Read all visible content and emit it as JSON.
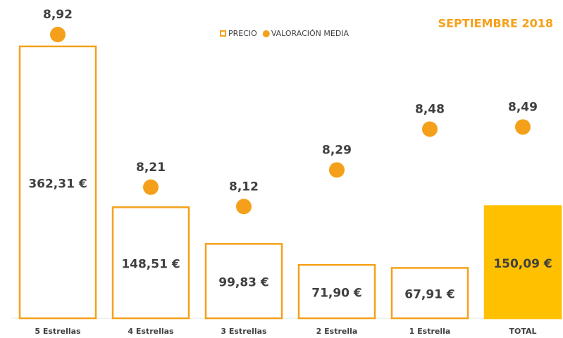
{
  "chart_data": {
    "type": "bar_dot",
    "title": "SEPTIEMBRE 2018",
    "categories": [
      "5 Estrellas",
      "4 Estrellas",
      "3 Estrellas",
      "2 Estrella",
      "1 Estrella",
      "TOTAL"
    ],
    "series": [
      {
        "name": "PRECIO",
        "type": "bar",
        "color": "#f5a01a",
        "fill_colors": [
          "none",
          "none",
          "none",
          "none",
          "none",
          "#ffc000"
        ],
        "values": [
          362.31,
          148.51,
          99.83,
          71.9,
          67.91,
          150.09
        ],
        "value_labels": [
          "362,31 €",
          "148,51 €",
          "99,83 €",
          "71,90 €",
          "67,91 €",
          "150,09 €"
        ]
      },
      {
        "name": "VALORACIÓN MEDIA",
        "type": "dot",
        "axis": "y2",
        "color": "#f5a01a",
        "values": [
          8.92,
          8.21,
          8.12,
          8.29,
          8.48,
          8.49
        ],
        "value_labels": [
          "8,92",
          "8,21",
          "8,12",
          "8,29",
          "8,48",
          "8,49"
        ]
      }
    ],
    "ylim": [
      0,
      380
    ],
    "y2lim": [
      7.6,
      8.93
    ],
    "legend": "top"
  }
}
